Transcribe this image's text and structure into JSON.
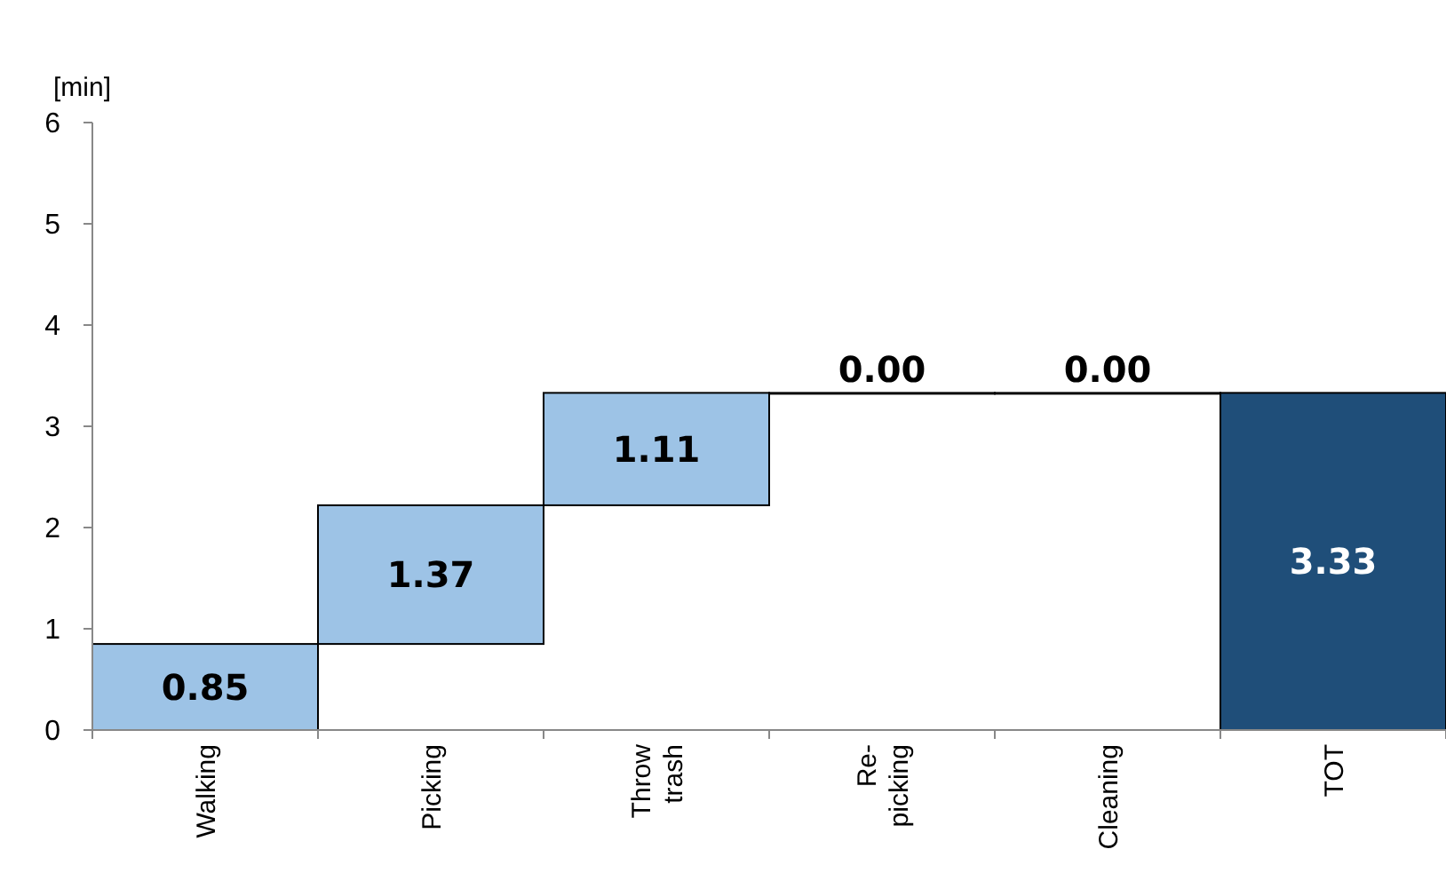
{
  "chart_data": {
    "type": "bar",
    "ylabel": "[min]",
    "categories": [
      "Walking",
      "Picking",
      "Throw\ntrash",
      "Re-\npicking",
      "Cleaning",
      "TOT"
    ],
    "values": [
      0.85,
      1.37,
      1.11,
      0,
      0,
      3.33
    ],
    "base": [
      0,
      0.85,
      2.22,
      3.33,
      3.33,
      0
    ],
    "colors": [
      "#9dc3e6",
      "#9dc3e6",
      "#9dc3e6",
      "#9dc3e6",
      "#9dc3e6",
      "#1f4e79"
    ],
    "value_labels": [
      "0.85",
      "1.37",
      "1.11",
      "0.00",
      "0.00",
      "3.33"
    ],
    "ylim": [
      0,
      6
    ],
    "yticks": [
      0,
      1,
      2,
      3,
      4,
      5,
      6
    ],
    "grid": false
  }
}
